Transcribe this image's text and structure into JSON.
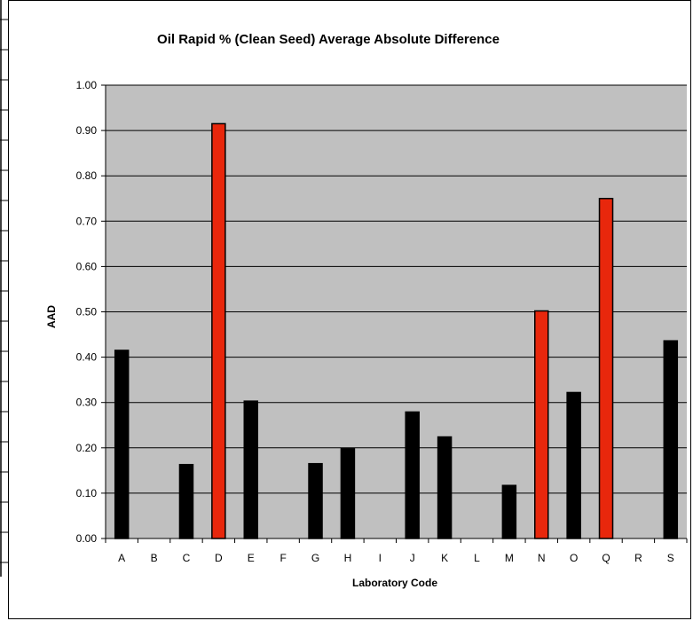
{
  "chart_data": {
    "type": "bar",
    "title": "Oil Rapid % (Clean Seed) Average Absolute Difference",
    "xlabel": "Laboratory Code",
    "ylabel": "AAD",
    "ylim": [
      0,
      1
    ],
    "ytick_step": 0.1,
    "ytick_labels": [
      "0.00",
      "0.10",
      "0.20",
      "0.30",
      "0.40",
      "0.50",
      "0.60",
      "0.70",
      "0.80",
      "0.90",
      "1.00"
    ],
    "grid": true,
    "legend": "none",
    "categories": [
      "A",
      "B",
      "C",
      "D",
      "E",
      "F",
      "G",
      "H",
      "I",
      "J",
      "K",
      "L",
      "M",
      "N",
      "O",
      "Q",
      "R",
      "S"
    ],
    "values": [
      0.415,
      null,
      0.163,
      0.915,
      0.303,
      null,
      0.165,
      0.198,
      null,
      0.279,
      0.224,
      null,
      0.117,
      0.502,
      0.322,
      0.75,
      null,
      0.436
    ],
    "highlighted": [
      "D",
      "N",
      "Q"
    ],
    "colors": {
      "plot_background": "#c0c0c0",
      "bar": "#000000",
      "highlight_bar": "#e8270c",
      "gridline": "#000000"
    }
  }
}
